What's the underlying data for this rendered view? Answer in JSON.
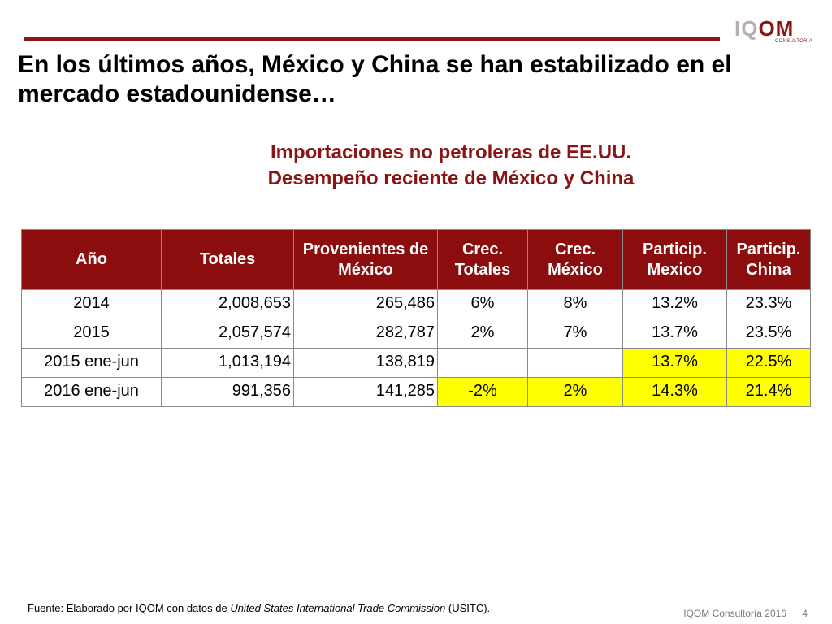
{
  "logo": {
    "text_main_a": "IQ",
    "text_main_b": "OM",
    "text_sub": "CONSULTORÍA"
  },
  "title": "En los últimos años, México y China se han estabilizado en el mercado estadounidense…",
  "subtitle": {
    "line1": "Importaciones no petroleras de EE.UU.",
    "line2": "Desempeño reciente de México y China"
  },
  "table": {
    "headers": [
      "Año",
      "Totales",
      "Provenientes de México",
      "Crec. Totales",
      "Crec. México",
      "Particip. Mexico",
      "Particip. China"
    ],
    "rows": [
      {
        "year": "2014",
        "totales": "2,008,653",
        "mexico": "265,486",
        "crec_tot": "6%",
        "crec_mex": "8%",
        "part_mex": "13.2%",
        "part_china": "23.3%"
      },
      {
        "year": "2015",
        "totales": "2,057,574",
        "mexico": "282,787",
        "crec_tot": "2%",
        "crec_mex": "7%",
        "part_mex": "13.7%",
        "part_china": "23.5%"
      },
      {
        "year": "2015 ene-jun",
        "totales": "1,013,194",
        "mexico": "138,819",
        "crec_tot": "",
        "crec_mex": "",
        "part_mex": "13.7%",
        "part_china": "22.5%"
      },
      {
        "year": "2016 ene-jun",
        "totales": "991,356",
        "mexico": "141,285",
        "crec_tot": "-2%",
        "crec_mex": "2%",
        "part_mex": "14.3%",
        "part_china": "21.4%"
      }
    ],
    "colors": {
      "header_bg": "#8b0d0d",
      "highlight": "#ffff00"
    }
  },
  "footer": {
    "prefix": "Fuente: Elaborado por IQOM  con datos de ",
    "source_italic": "United States International Trade Commission",
    "suffix": " (USITC)."
  },
  "page": {
    "company": "IQOM Consultoría 2016",
    "number": "4"
  },
  "colors": {
    "accent": "#8b1414"
  }
}
